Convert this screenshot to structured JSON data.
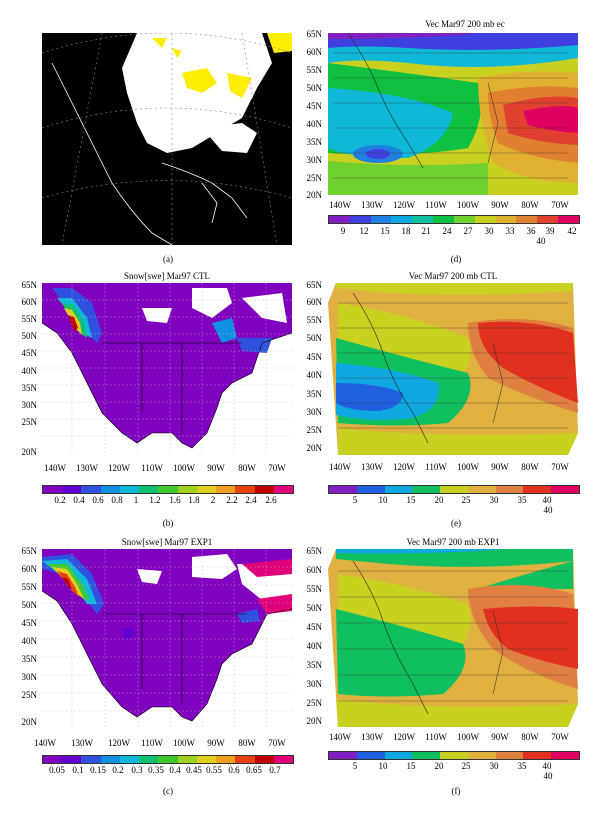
{
  "panels": {
    "a": {
      "caption": "(a)"
    },
    "b": {
      "caption": "(b)",
      "title": "Snow[swe] Mar97 CTL",
      "colorbar": [
        "0.2",
        "0.4",
        "0.6",
        "0.8",
        "1",
        "1.2",
        "1.6",
        "1.8",
        "2",
        "2.2",
        "2.4",
        "2.6"
      ]
    },
    "c": {
      "caption": "(c)",
      "title": "Snow[swe] Mar97 EXP1",
      "colorbar": [
        "0.05",
        "0.1",
        "0.15",
        "0.2",
        "0.3",
        "0.35",
        "0.4",
        "0.45",
        "0.55",
        "0.6",
        "0.65",
        "0.7"
      ]
    },
    "d": {
      "caption": "(d)",
      "title": "Vec Mar97 200 mb ec",
      "colorbar": [
        "9",
        "12",
        "15",
        "18",
        "21",
        "24",
        "27",
        "30",
        "33",
        "36",
        "39",
        "42"
      ],
      "ref_vector": "40"
    },
    "e": {
      "caption": "(e)",
      "title": "Vec Mar97 200 mb CTL",
      "colorbar": [
        "5",
        "10",
        "15",
        "20",
        "25",
        "30",
        "35",
        "40"
      ],
      "ref_vector": "40"
    },
    "f": {
      "caption": "(f)",
      "title": "Vec Mar97 200 mb EXP1",
      "colorbar": [
        "5",
        "10",
        "15",
        "20",
        "25",
        "30",
        "35",
        "40"
      ],
      "ref_vector": "40"
    }
  },
  "lat_labels": [
    "65N",
    "60N",
    "55N",
    "50N",
    "45N",
    "40N",
    "35N",
    "30N",
    "25N",
    "20N"
  ],
  "lon_labels": [
    "140W",
    "130W",
    "120W",
    "110W",
    "100W",
    "90W",
    "80W",
    "70W"
  ],
  "colors": {
    "swe_scale": [
      "#8000c0",
      "#6000d0",
      "#3050e0",
      "#1090e0",
      "#10b8d8",
      "#10c070",
      "#40c830",
      "#a0d020",
      "#e0d020",
      "#f0a020",
      "#e84010",
      "#c00000",
      "#e0007a"
    ],
    "wind_scale_d": [
      "#8020c0",
      "#4040e0",
      "#2080e0",
      "#10a8e0",
      "#10c0a0",
      "#10c040",
      "#70d030",
      "#c8d020",
      "#e0b030",
      "#e08030",
      "#e04030",
      "#e00060"
    ],
    "wind_scale_ef": [
      "#8020c0",
      "#2060e0",
      "#10a8e0",
      "#10c060",
      "#c8d020",
      "#e0b040",
      "#e08040",
      "#e03020",
      "#e00060"
    ]
  }
}
